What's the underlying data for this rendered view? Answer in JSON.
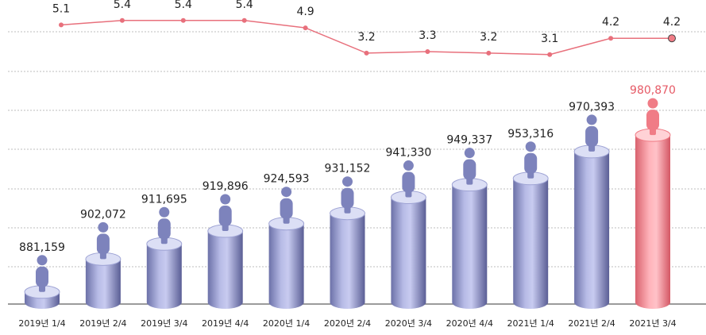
{
  "chart_data": {
    "type": "bar",
    "categories": [
      "2019년 1/4",
      "2019년 2/4",
      "2019년 3/4",
      "2019년 4/4",
      "2020년 1/4",
      "2020년 2/4",
      "2020년 3/4",
      "2020년 4/4",
      "2021년 1/4",
      "2021년 2/4",
      "2021년 3/4"
    ],
    "series": [
      {
        "type": "bar",
        "values": [
          881159,
          902072,
          911695,
          919896,
          924593,
          931152,
          941330,
          949337,
          953316,
          970393,
          980870
        ],
        "labels": [
          "881,159",
          "902,072",
          "911,695",
          "919,896",
          "924,593",
          "931,152",
          "941,330",
          "949,337",
          "953,316",
          "970,393",
          "980,870"
        ]
      },
      {
        "type": "line",
        "values": [
          5.1,
          5.4,
          5.4,
          5.4,
          4.9,
          3.2,
          3.3,
          3.2,
          3.1,
          4.2,
          4.2
        ],
        "labels": [
          "5.1",
          "5.4",
          "5.4",
          "5.4",
          "4.9",
          "3.2",
          "3.3",
          "3.2",
          "3.1",
          "4.2",
          "4.2"
        ]
      }
    ],
    "highlight_index": 10,
    "colors": {
      "bar": "#9ea3d4",
      "bar_dark": "#5e6298",
      "bar_light": "#dcdff5",
      "figure": "#7d83bc",
      "highlight": "#f07c86",
      "highlight_dark": "#c84d59",
      "highlight_light": "#ffd2d6",
      "line": "#e8707c",
      "highlight_text": "#e65a66",
      "grid": "#bdbdbd"
    },
    "grid": true,
    "grid_style": "dotted"
  }
}
